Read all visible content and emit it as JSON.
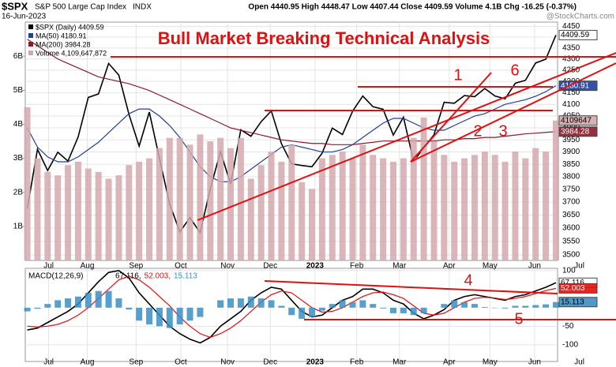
{
  "header": {
    "symbol": "$SPX",
    "name": "S&P 500 Large Cap Index",
    "exchange": "INDX",
    "date": "16-Jun-2023",
    "quote": "Open 4440.95 High 4448.47 Low 4407.44 Close 4409.59 Volume 4.1B Chg -16.25 (-0.37%)",
    "credit": "@StockCharts.com"
  },
  "chart_data": [
    {
      "type": "line",
      "title": "Bull Market Breaking Technical Analysis",
      "log": true,
      "grid": true,
      "annotations": [
        "1",
        "2",
        "3",
        "6"
      ],
      "xlim": [
        -0.2,
        54.8
      ],
      "xticks": [
        {
          "value": 2.1,
          "label": "Jul"
        },
        {
          "value": 5.9,
          "label": "Aug"
        },
        {
          "value": 10.7,
          "label": "Sep"
        },
        {
          "value": 15.1,
          "label": "Oct"
        },
        {
          "value": 19.7,
          "label": "Nov"
        },
        {
          "value": 23.9,
          "label": "Dec"
        },
        {
          "value": 28.3,
          "label": "2023"
        },
        {
          "value": 32.4,
          "label": "Feb"
        },
        {
          "value": 36.6,
          "label": "Mar"
        },
        {
          "value": 41.5,
          "label": "Apr"
        },
        {
          "value": 45.5,
          "label": "May"
        },
        {
          "value": 49.9,
          "label": "Jun"
        },
        {
          "value": 54.3,
          "label": "Jul"
        }
      ],
      "ylim": [
        3480,
        4470
      ],
      "yticks": [
        3500,
        3550,
        3600,
        3650,
        3700,
        3750,
        3800,
        3850,
        3900,
        3950,
        4000,
        4050,
        4100,
        4150,
        4200,
        4250,
        4300,
        4350,
        4400,
        4450
      ],
      "y2lim": [
        0,
        7
      ],
      "y2ticks": [
        {
          "value": 1,
          "label": "1B"
        },
        {
          "value": 2,
          "label": "2B"
        },
        {
          "value": 3,
          "label": "3B"
        },
        {
          "value": 4,
          "label": "4B"
        },
        {
          "value": 5,
          "label": "5B"
        },
        {
          "value": 6,
          "label": "6B"
        }
      ],
      "series": [
        {
          "name": "$SPX (Daily) 4409.59",
          "tag": "4409.59",
          "color": "#000000",
          "values": [
            3675,
            3911,
            3825,
            3899,
            3863,
            3962,
            4130,
            4145,
            4280,
            4228,
            4057,
            3924,
            4067,
            3873,
            3693,
            3586,
            3640,
            3583,
            3752,
            3901,
            3771,
            3992,
            3965,
            4026,
            4072,
            3934,
            3852,
            3845,
            3840,
            3895,
            3999,
            3972,
            4071,
            4136,
            4090,
            4079,
            3970,
            4045,
            3862,
            3917,
            3971,
            4109,
            4105,
            4138,
            4133,
            4169,
            4136,
            4124,
            4192,
            4205,
            4282,
            4299,
            4409.59
          ]
        },
        {
          "name": "MA(50) 4180.91",
          "tag": "4180.91",
          "color": "#1f3f99",
          "values": [
            4000,
            3920,
            3880,
            3860,
            3860,
            3880,
            3910,
            3940,
            3980,
            4020,
            4060,
            4080,
            4080,
            4050,
            4010,
            3960,
            3900,
            3840,
            3800,
            3780,
            3780,
            3800,
            3830,
            3860,
            3890,
            3920,
            3930,
            3920,
            3910,
            3900,
            3900,
            3910,
            3930,
            3960,
            3990,
            4020,
            4040,
            4040,
            4020,
            4000,
            3990,
            3990,
            4010,
            4030,
            4050,
            4060,
            4080,
            4100,
            4110,
            4120,
            4135,
            4155,
            4180.91
          ]
        },
        {
          "name": "MA(200) 3984.28",
          "tag": "3984.28",
          "color": "#8b1a2b",
          "values": [
            4390,
            4360,
            4330,
            4300,
            4280,
            4260,
            4240,
            4220,
            4210,
            4200,
            4190,
            4175,
            4160,
            4140,
            4120,
            4100,
            4080,
            4060,
            4040,
            4020,
            4000,
            3990,
            3980,
            3970,
            3960,
            3950,
            3945,
            3940,
            3935,
            3935,
            3930,
            3930,
            3930,
            3935,
            3940,
            3945,
            3945,
            3945,
            3945,
            3945,
            3945,
            3950,
            3950,
            3955,
            3955,
            3960,
            3960,
            3965,
            3970,
            3975,
            3978,
            3981,
            3984.28
          ]
        },
        {
          "name": "Volume 4,109,647,872",
          "tag": "4109647",
          "type": "bar",
          "axis": "y2",
          "color": "#d4a9ae",
          "values": [
            4.5,
            3.0,
            2.6,
            2.5,
            2.8,
            2.9,
            2.7,
            2.6,
            2.4,
            2.5,
            2.8,
            2.9,
            3.0,
            3.3,
            3.6,
            3.6,
            3.4,
            3.7,
            3.5,
            3.6,
            3.3,
            3.6,
            2.4,
            2.8,
            3.2,
            2.9,
            3.4,
            2.3,
            2.1,
            3.0,
            3.1,
            3.2,
            3.0,
            3.4,
            3.1,
            3.0,
            2.9,
            3.0,
            3.6,
            4.2,
            3.5,
            3.1,
            2.9,
            3.0,
            3.1,
            3.2,
            3.1,
            2.9,
            3.2,
            3.0,
            3.3,
            3.2,
            4.109647872
          ]
        }
      ]
    },
    {
      "type": "line",
      "title": "MACD(12,26,9)",
      "grid": true,
      "annotations": [
        "4",
        "5"
      ],
      "xlim": [
        -0.2,
        54.8
      ],
      "xticks": [
        {
          "value": 2.1,
          "label": "Jul"
        },
        {
          "value": 5.9,
          "label": "Aug"
        },
        {
          "value": 10.7,
          "label": "Sep"
        },
        {
          "value": 15.1,
          "label": "Oct"
        },
        {
          "value": 19.7,
          "label": "Nov"
        },
        {
          "value": 23.9,
          "label": "Dec"
        },
        {
          "value": 28.3,
          "label": "2023"
        },
        {
          "value": 32.4,
          "label": "Feb"
        },
        {
          "value": 36.6,
          "label": "Mar"
        },
        {
          "value": 41.5,
          "label": "Apr"
        },
        {
          "value": 45.5,
          "label": "May"
        },
        {
          "value": 49.9,
          "label": "Jun"
        },
        {
          "value": 54.3,
          "label": "Jul"
        }
      ],
      "ylim": [
        -145,
        106
      ],
      "yticks": [
        100,
        -50,
        -100
      ],
      "series": [
        {
          "name": "67.116,",
          "tag": "67.116",
          "color": "#000000",
          "values": [
            -60,
            -55,
            -40,
            -25,
            -10,
            10,
            40,
            70,
            95,
            100,
            80,
            40,
            10,
            -20,
            -50,
            -70,
            -85,
            -95,
            -80,
            -50,
            -30,
            -10,
            20,
            40,
            55,
            50,
            20,
            -10,
            -25,
            -20,
            0,
            20,
            30,
            50,
            50,
            40,
            20,
            10,
            -15,
            -30,
            -20,
            -5,
            20,
            30,
            35,
            30,
            25,
            20,
            30,
            35,
            45,
            55,
            67.116
          ]
        },
        {
          "name": "52.003,",
          "tag": "52.003",
          "color": "#e01010",
          "values": [
            -50,
            -52,
            -50,
            -45,
            -35,
            -20,
            0,
            25,
            50,
            75,
            85,
            75,
            55,
            30,
            5,
            -25,
            -50,
            -70,
            -80,
            -70,
            -55,
            -35,
            -10,
            15,
            35,
            45,
            40,
            20,
            0,
            -12,
            -10,
            0,
            15,
            30,
            40,
            42,
            35,
            25,
            5,
            -15,
            -20,
            -15,
            0,
            15,
            25,
            28,
            26,
            22,
            25,
            30,
            38,
            46,
            52.003
          ]
        },
        {
          "name": "15.113",
          "tag": "15.113",
          "type": "bar",
          "color": "#3a8fc4",
          "values": [
            -10,
            -3,
            10,
            20,
            25,
            30,
            40,
            45,
            45,
            25,
            -5,
            -35,
            -45,
            -50,
            -55,
            -45,
            -35,
            -25,
            0,
            20,
            25,
            25,
            30,
            25,
            20,
            5,
            -20,
            -30,
            -25,
            -8,
            10,
            20,
            15,
            20,
            10,
            -2,
            -15,
            -15,
            -20,
            -15,
            0,
            10,
            20,
            15,
            10,
            2,
            -1,
            -2,
            5,
            5,
            7,
            9,
            15.113
          ]
        }
      ]
    }
  ]
}
